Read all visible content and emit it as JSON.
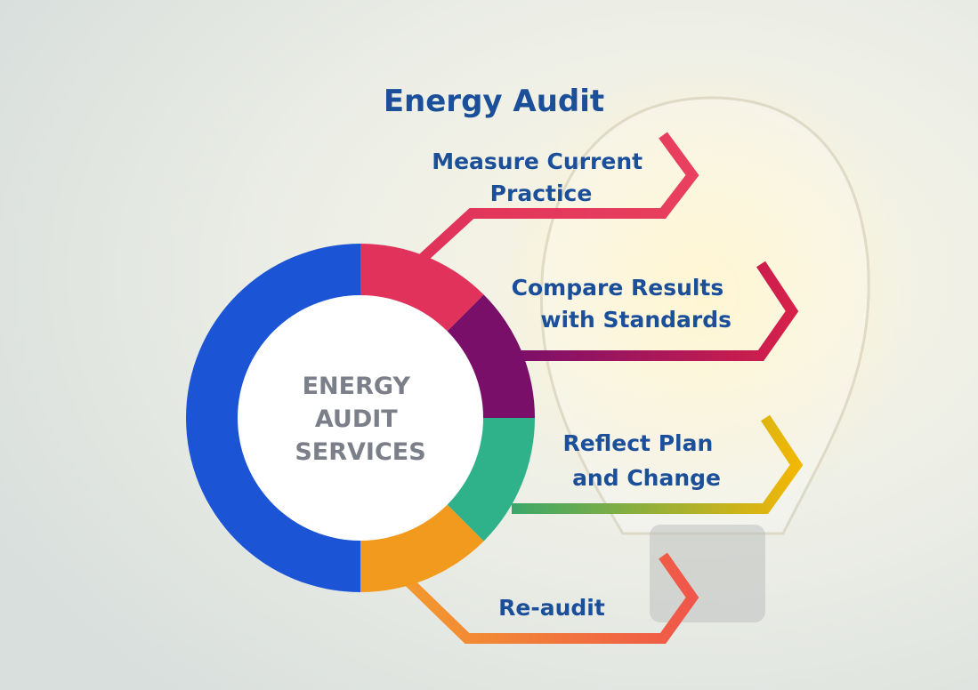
{
  "title": "Energy Audit",
  "center": {
    "lines": [
      "ENERGY",
      "AUDIT",
      "SERVICES"
    ]
  },
  "steps": [
    {
      "lines": [
        "Measure Current",
        "Practice"
      ]
    },
    {
      "lines": [
        "Compare Results",
        "with Standards"
      ]
    },
    {
      "lines": [
        "Reflect Plan",
        "and Change"
      ]
    },
    {
      "lines": [
        "Re-audit"
      ]
    }
  ]
}
